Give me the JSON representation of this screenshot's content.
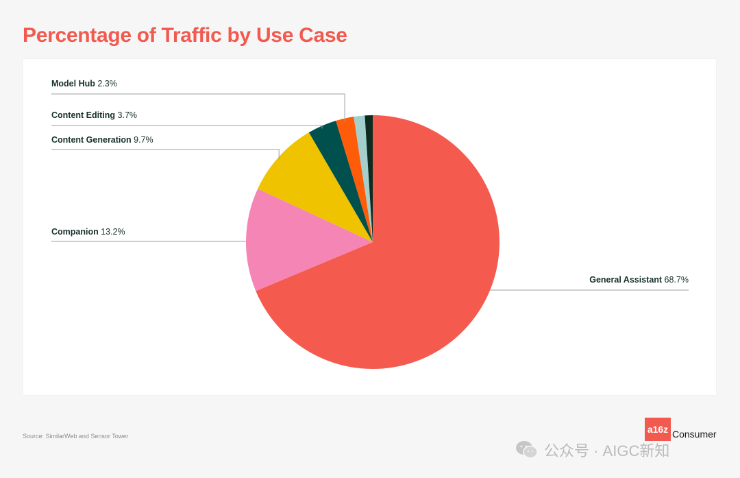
{
  "page": {
    "title": "Percentage of Traffic by Use Case",
    "source": "Source: SimilarWeb and Sensor Tower",
    "brand_badge": "a16z",
    "brand_text": "Consumer",
    "watermark": "公众号 · AIGC新知",
    "watermark_icon": "wechat-icon"
  },
  "chart_data": {
    "type": "pie",
    "title": "Percentage of Traffic by Use Case",
    "start_angle_deg": 0,
    "direction": "clockwise",
    "slices": [
      {
        "label": "General Assistant",
        "value": 68.7,
        "display": "68.7%",
        "color": "#f55a4e",
        "labeled": true
      },
      {
        "label": "Companion",
        "value": 13.2,
        "display": "13.2%",
        "color": "#f585b4",
        "labeled": true
      },
      {
        "label": "Content Generation",
        "value": 9.7,
        "display": "9.7%",
        "color": "#f0c300",
        "labeled": true
      },
      {
        "label": "Content Editing",
        "value": 3.7,
        "display": "3.7%",
        "color": "#00504d",
        "labeled": true
      },
      {
        "label": "Model Hub",
        "value": 2.3,
        "display": "2.3%",
        "color": "#ff5c0a",
        "labeled": true
      },
      {
        "label": "",
        "value": 1.4,
        "display": "",
        "color": "#a3cfcc",
        "labeled": false
      },
      {
        "label": "",
        "value": 1.0,
        "display": "",
        "color": "#0f2b1f",
        "labeled": false
      }
    ]
  }
}
